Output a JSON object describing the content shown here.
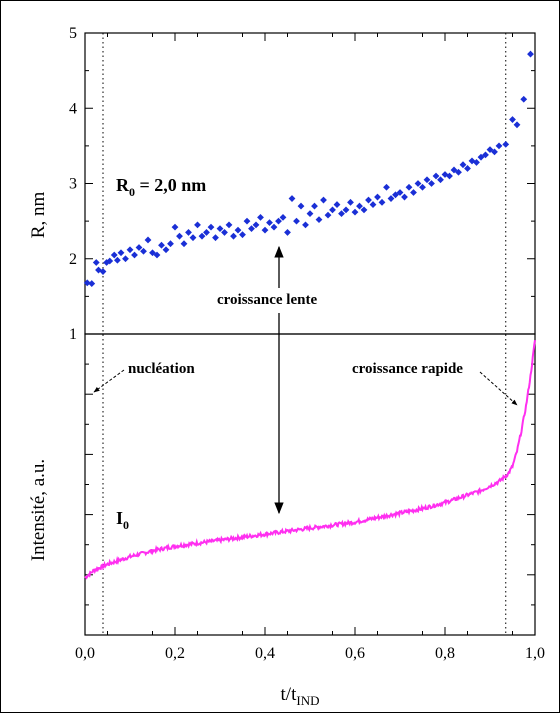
{
  "chart_data": {
    "type": "scatter",
    "x_axis": {
      "label": "t/t",
      "label_sub": "IND",
      "range": [
        0.0,
        1.0
      ],
      "ticks": [
        "0,0",
        "0,2",
        "0,4",
        "0,6",
        "0,8",
        "1,0"
      ]
    },
    "top_panel": {
      "ylabel": "R, nm",
      "ylim": [
        1,
        5
      ],
      "yticks": [
        "1",
        "2",
        "3",
        "4",
        "5"
      ],
      "series_label": "R",
      "series_label_sub": "0",
      "series_label_value": " = 2,0 nm",
      "marker_color": "#1a2fd6",
      "points": [
        [
          0.005,
          1.68
        ],
        [
          0.015,
          1.67
        ],
        [
          0.025,
          1.95
        ],
        [
          0.03,
          1.85
        ],
        [
          0.04,
          1.83
        ],
        [
          0.048,
          1.95
        ],
        [
          0.055,
          1.97
        ],
        [
          0.065,
          2.05
        ],
        [
          0.072,
          1.98
        ],
        [
          0.08,
          2.08
        ],
        [
          0.09,
          2.0
        ],
        [
          0.1,
          2.12
        ],
        [
          0.11,
          2.05
        ],
        [
          0.12,
          2.15
        ],
        [
          0.13,
          2.1
        ],
        [
          0.14,
          2.25
        ],
        [
          0.15,
          2.08
        ],
        [
          0.16,
          2.05
        ],
        [
          0.17,
          2.18
        ],
        [
          0.18,
          2.12
        ],
        [
          0.19,
          2.2
        ],
        [
          0.2,
          2.42
        ],
        [
          0.21,
          2.3
        ],
        [
          0.22,
          2.2
        ],
        [
          0.23,
          2.35
        ],
        [
          0.24,
          2.28
        ],
        [
          0.25,
          2.45
        ],
        [
          0.26,
          2.3
        ],
        [
          0.27,
          2.35
        ],
        [
          0.28,
          2.42
        ],
        [
          0.29,
          2.28
        ],
        [
          0.3,
          2.4
        ],
        [
          0.31,
          2.35
        ],
        [
          0.32,
          2.45
        ],
        [
          0.33,
          2.3
        ],
        [
          0.34,
          2.38
        ],
        [
          0.35,
          2.32
        ],
        [
          0.36,
          2.5
        ],
        [
          0.37,
          2.4
        ],
        [
          0.38,
          2.45
        ],
        [
          0.39,
          2.55
        ],
        [
          0.4,
          2.38
        ],
        [
          0.41,
          2.48
        ],
        [
          0.42,
          2.42
        ],
        [
          0.43,
          2.5
        ],
        [
          0.44,
          2.55
        ],
        [
          0.45,
          2.35
        ],
        [
          0.46,
          2.8
        ],
        [
          0.47,
          2.5
        ],
        [
          0.48,
          2.7
        ],
        [
          0.49,
          2.45
        ],
        [
          0.5,
          2.6
        ],
        [
          0.51,
          2.7
        ],
        [
          0.52,
          2.52
        ],
        [
          0.53,
          2.78
        ],
        [
          0.54,
          2.58
        ],
        [
          0.55,
          2.65
        ],
        [
          0.56,
          2.72
        ],
        [
          0.57,
          2.6
        ],
        [
          0.58,
          2.65
        ],
        [
          0.59,
          2.75
        ],
        [
          0.6,
          2.62
        ],
        [
          0.61,
          2.7
        ],
        [
          0.62,
          2.65
        ],
        [
          0.63,
          2.78
        ],
        [
          0.64,
          2.72
        ],
        [
          0.65,
          2.82
        ],
        [
          0.66,
          2.75
        ],
        [
          0.67,
          2.95
        ],
        [
          0.68,
          2.8
        ],
        [
          0.69,
          2.85
        ],
        [
          0.7,
          2.88
        ],
        [
          0.71,
          2.82
        ],
        [
          0.72,
          2.95
        ],
        [
          0.73,
          2.88
        ],
        [
          0.74,
          3.0
        ],
        [
          0.75,
          2.95
        ],
        [
          0.76,
          3.05
        ],
        [
          0.77,
          3.0
        ],
        [
          0.78,
          3.1
        ],
        [
          0.79,
          3.05
        ],
        [
          0.8,
          3.12
        ],
        [
          0.81,
          3.1
        ],
        [
          0.82,
          3.18
        ],
        [
          0.83,
          3.15
        ],
        [
          0.84,
          3.25
        ],
        [
          0.85,
          3.2
        ],
        [
          0.86,
          3.3
        ],
        [
          0.87,
          3.28
        ],
        [
          0.88,
          3.35
        ],
        [
          0.89,
          3.38
        ],
        [
          0.9,
          3.45
        ],
        [
          0.91,
          3.42
        ],
        [
          0.92,
          3.5
        ],
        [
          0.935,
          3.52
        ],
        [
          0.95,
          3.85
        ],
        [
          0.96,
          3.78
        ],
        [
          0.975,
          4.12
        ],
        [
          0.99,
          4.72
        ]
      ]
    },
    "bottom_panel": {
      "ylabel": "Intensité, a.u.",
      "series_label": "I",
      "series_label_sub": "0",
      "line_color": "#ff2ff0",
      "ylim": [
        0,
        1
      ],
      "line": [
        [
          0.0,
          0.19
        ],
        [
          0.02,
          0.215
        ],
        [
          0.05,
          0.235
        ],
        [
          0.1,
          0.26
        ],
        [
          0.15,
          0.28
        ],
        [
          0.2,
          0.295
        ],
        [
          0.25,
          0.305
        ],
        [
          0.3,
          0.315
        ],
        [
          0.35,
          0.325
        ],
        [
          0.4,
          0.335
        ],
        [
          0.45,
          0.345
        ],
        [
          0.5,
          0.355
        ],
        [
          0.55,
          0.365
        ],
        [
          0.6,
          0.375
        ],
        [
          0.65,
          0.39
        ],
        [
          0.7,
          0.405
        ],
        [
          0.75,
          0.42
        ],
        [
          0.8,
          0.44
        ],
        [
          0.85,
          0.465
        ],
        [
          0.88,
          0.48
        ],
        [
          0.9,
          0.495
        ],
        [
          0.92,
          0.51
        ],
        [
          0.94,
          0.535
        ],
        [
          0.95,
          0.56
        ],
        [
          0.96,
          0.61
        ],
        [
          0.97,
          0.68
        ],
        [
          0.98,
          0.76
        ],
        [
          0.99,
          0.86
        ],
        [
          1.0,
          0.98
        ]
      ]
    },
    "guide_lines_x": [
      0.04,
      0.935
    ],
    "annotations": {
      "croissance_lente": "croissance lente",
      "nucleation": "nucléation",
      "croissance_rapide": "croissance rapide"
    }
  }
}
